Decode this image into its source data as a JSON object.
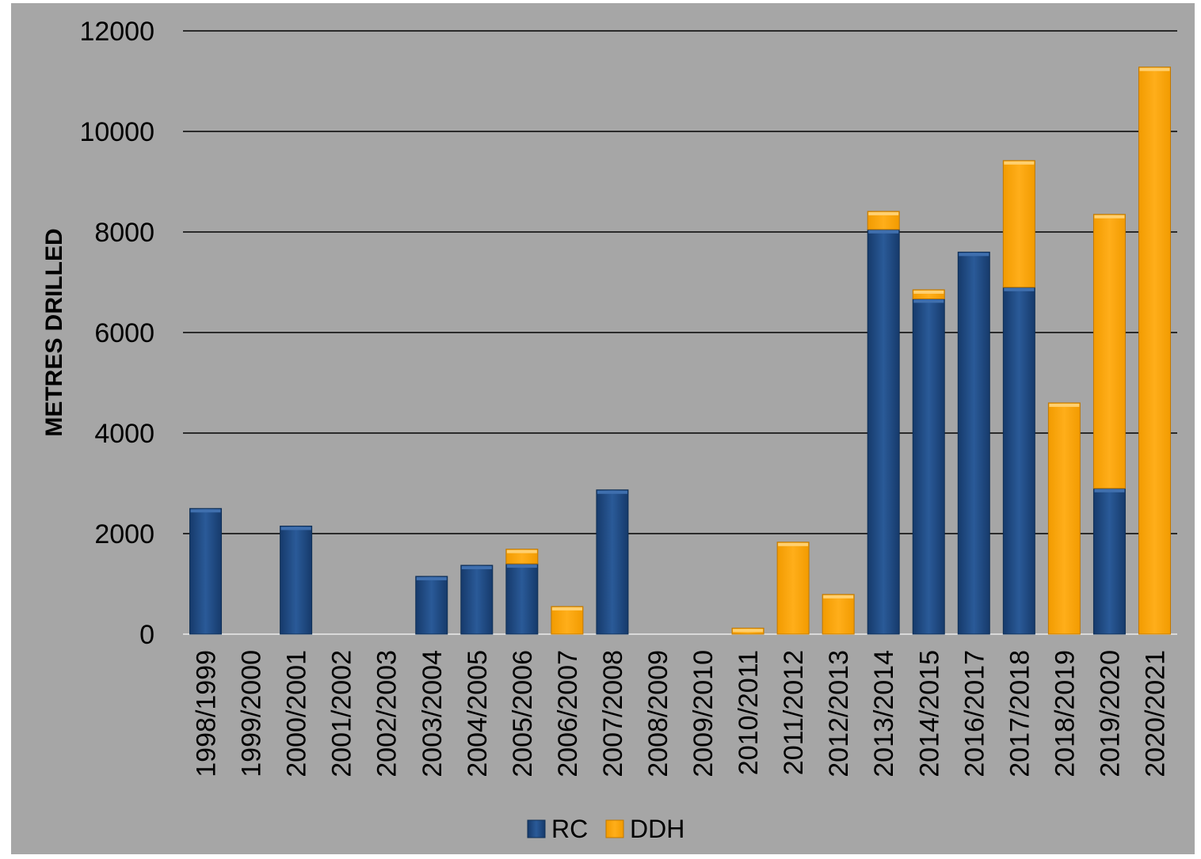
{
  "chart_data": {
    "type": "bar",
    "stacked": true,
    "ylabel": "METRES DRILLED",
    "xlabel": "",
    "ylim": [
      0,
      12000
    ],
    "yticks": [
      0,
      2000,
      4000,
      6000,
      8000,
      10000,
      12000
    ],
    "grid": true,
    "legend_position": "bottom",
    "categories": [
      "1998/1999",
      "1999/2000",
      "2000/2001",
      "2001/2002",
      "2002/2003",
      "2003/2004",
      "2004/2005",
      "2005/2006",
      "2006/2007",
      "2007/2008",
      "2008/2009",
      "2009/2010",
      "2010/2011",
      "2011/2012",
      "2012/2013",
      "2013/2014",
      "2014/2015",
      "2016/2017",
      "2017/2018",
      "2018/2019",
      "2019/2020",
      "2020/2021"
    ],
    "series": [
      {
        "name": "RC",
        "color": "#1f4e8c",
        "values": [
          2500,
          0,
          2150,
          0,
          0,
          1150,
          1370,
          1400,
          0,
          2870,
          0,
          0,
          0,
          0,
          0,
          8050,
          6670,
          7600,
          6900,
          0,
          2900,
          0
        ]
      },
      {
        "name": "DDH",
        "color": "#ffa500",
        "values": [
          0,
          0,
          0,
          0,
          0,
          0,
          0,
          290,
          550,
          0,
          0,
          0,
          120,
          1830,
          790,
          360,
          180,
          0,
          2520,
          4600,
          5450,
          11280
        ]
      }
    ]
  }
}
